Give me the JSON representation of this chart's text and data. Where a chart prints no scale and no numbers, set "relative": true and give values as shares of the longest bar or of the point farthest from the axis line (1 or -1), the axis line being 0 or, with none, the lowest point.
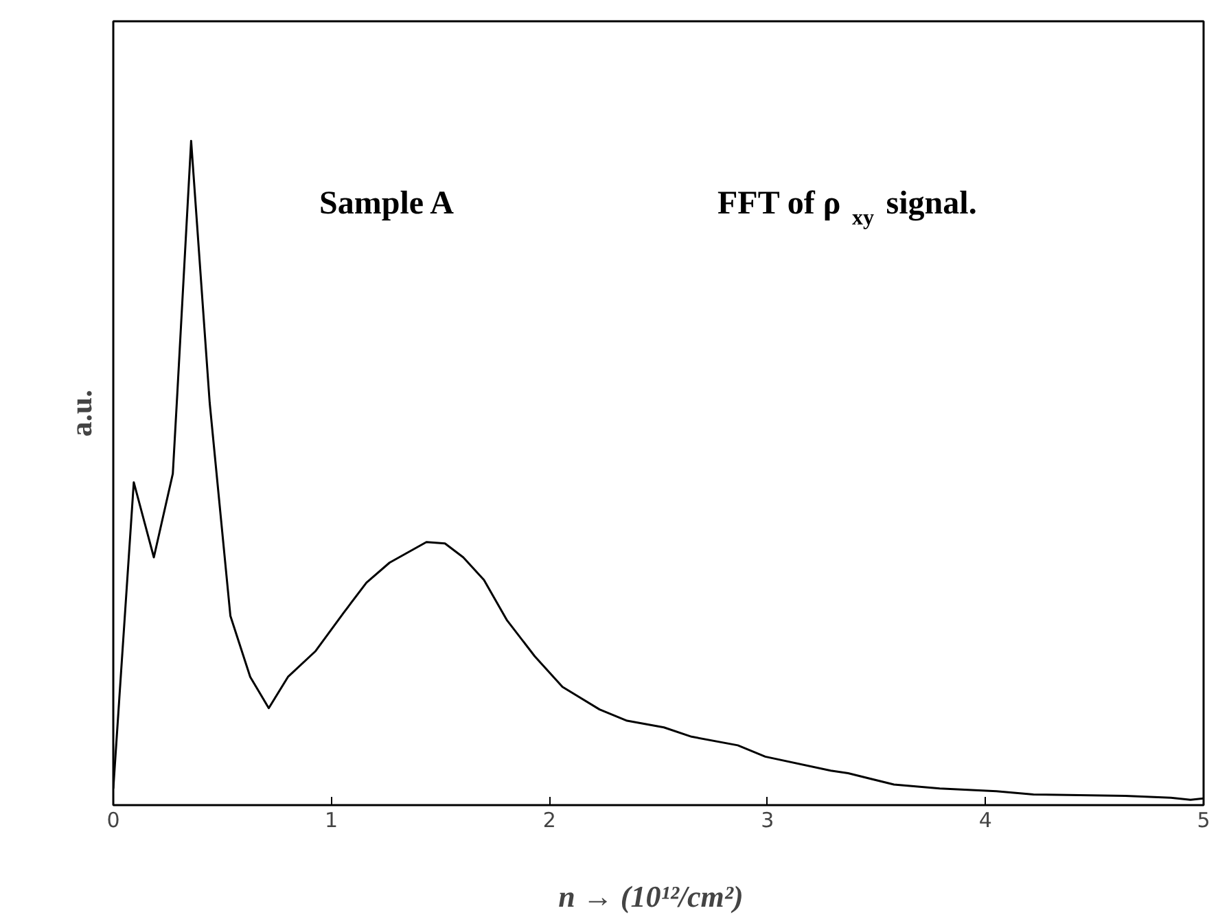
{
  "chart_data": {
    "type": "line",
    "relative": true,
    "xlabel": "n →   (10¹²/cm²)",
    "ylabel": "a.u.",
    "annotations": [
      "Sample A",
      "FFT of ρ$_{xy}$ signal."
    ],
    "xlim": [
      0,
      5
    ],
    "xticks": [
      0,
      1,
      2,
      3,
      4,
      5
    ],
    "grid": false,
    "line_style": "solid",
    "series": [
      {
        "color": "#000000",
        "x": [
          0,
          0.094,
          0.186,
          0.273,
          0.294,
          0.357,
          0.442,
          0.537,
          0.628,
          0.713,
          0.801,
          0.928,
          1.055,
          1.161,
          1.267,
          1.436,
          1.521,
          1.605,
          1.7,
          1.806,
          1.933,
          2.06,
          2.23,
          2.356,
          2.525,
          2.652,
          2.864,
          2.99,
          3.29,
          3.37,
          3.58,
          3.79,
          4.05,
          4.22,
          4.64,
          4.85,
          4.94,
          5.0
        ],
        "values": [
          0.025,
          0.486,
          0.373,
          0.499,
          0.622,
          1,
          0.606,
          0.285,
          0.193,
          0.146,
          0.193,
          0.232,
          0.289,
          0.335,
          0.365,
          0.396,
          0.394,
          0.373,
          0.339,
          0.278,
          0.224,
          0.178,
          0.144,
          0.127,
          0.117,
          0.103,
          0.09,
          0.073,
          0.052,
          0.048,
          0.031,
          0.025,
          0.021,
          0.016,
          0.014,
          0.011,
          0.008,
          0.01
        ]
      }
    ]
  }
}
